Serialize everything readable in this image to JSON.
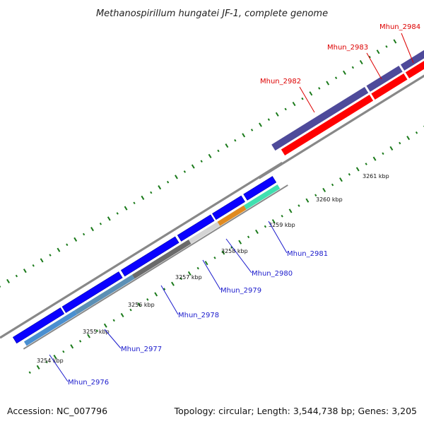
{
  "title": "Methanospirillum hungatei JF-1, complete genome",
  "accession": "Accession: NC_007796",
  "summary": "Topology: circular; Length: 3,544,738 bp; Genes: 3,205",
  "colors": {
    "background": "#ffffff",
    "backbone": "#888888",
    "dots": "#1a7a1a",
    "forward_cds": "#0a00ff",
    "reverse_cds": "#ff0000",
    "reverse_cds_muted": "#4e4a9a",
    "label_forward": "#1a1acc",
    "label_reverse": "#dd0000"
  },
  "ticks": [
    "3254 kbp",
    "3255 kbp",
    "3256 kbp",
    "3257 kbp",
    "3258 kbp",
    "3259 kbp",
    "3260 kbp",
    "3261 kbp"
  ],
  "genes": [
    {
      "name": "Mhun_2976",
      "color": "#4a8fd0",
      "label_color": "#1a1acc"
    },
    {
      "name": "Mhun_2977",
      "color": "#5b8fb5",
      "label_color": "#1a1acc"
    },
    {
      "name": "Mhun_2978",
      "color": "#6a6a6a",
      "label_color": "#1a1acc"
    },
    {
      "name": "Mhun_2979",
      "color": "#d4d4d4",
      "label_color": "#1a1acc"
    },
    {
      "name": "Mhun_2980",
      "color": "#e08a20",
      "label_color": "#1a1acc"
    },
    {
      "name": "Mhun_2981",
      "color": "#40e0b0",
      "label_color": "#1a1acc"
    },
    {
      "name": "Mhun_2982",
      "color": "#ff0000",
      "label_color": "#dd0000"
    },
    {
      "name": "Mhun_2983",
      "color": "#ff0000",
      "label_color": "#dd0000"
    },
    {
      "name": "Mhun_2984",
      "color": "#ff0000",
      "label_color": "#dd0000"
    }
  ]
}
